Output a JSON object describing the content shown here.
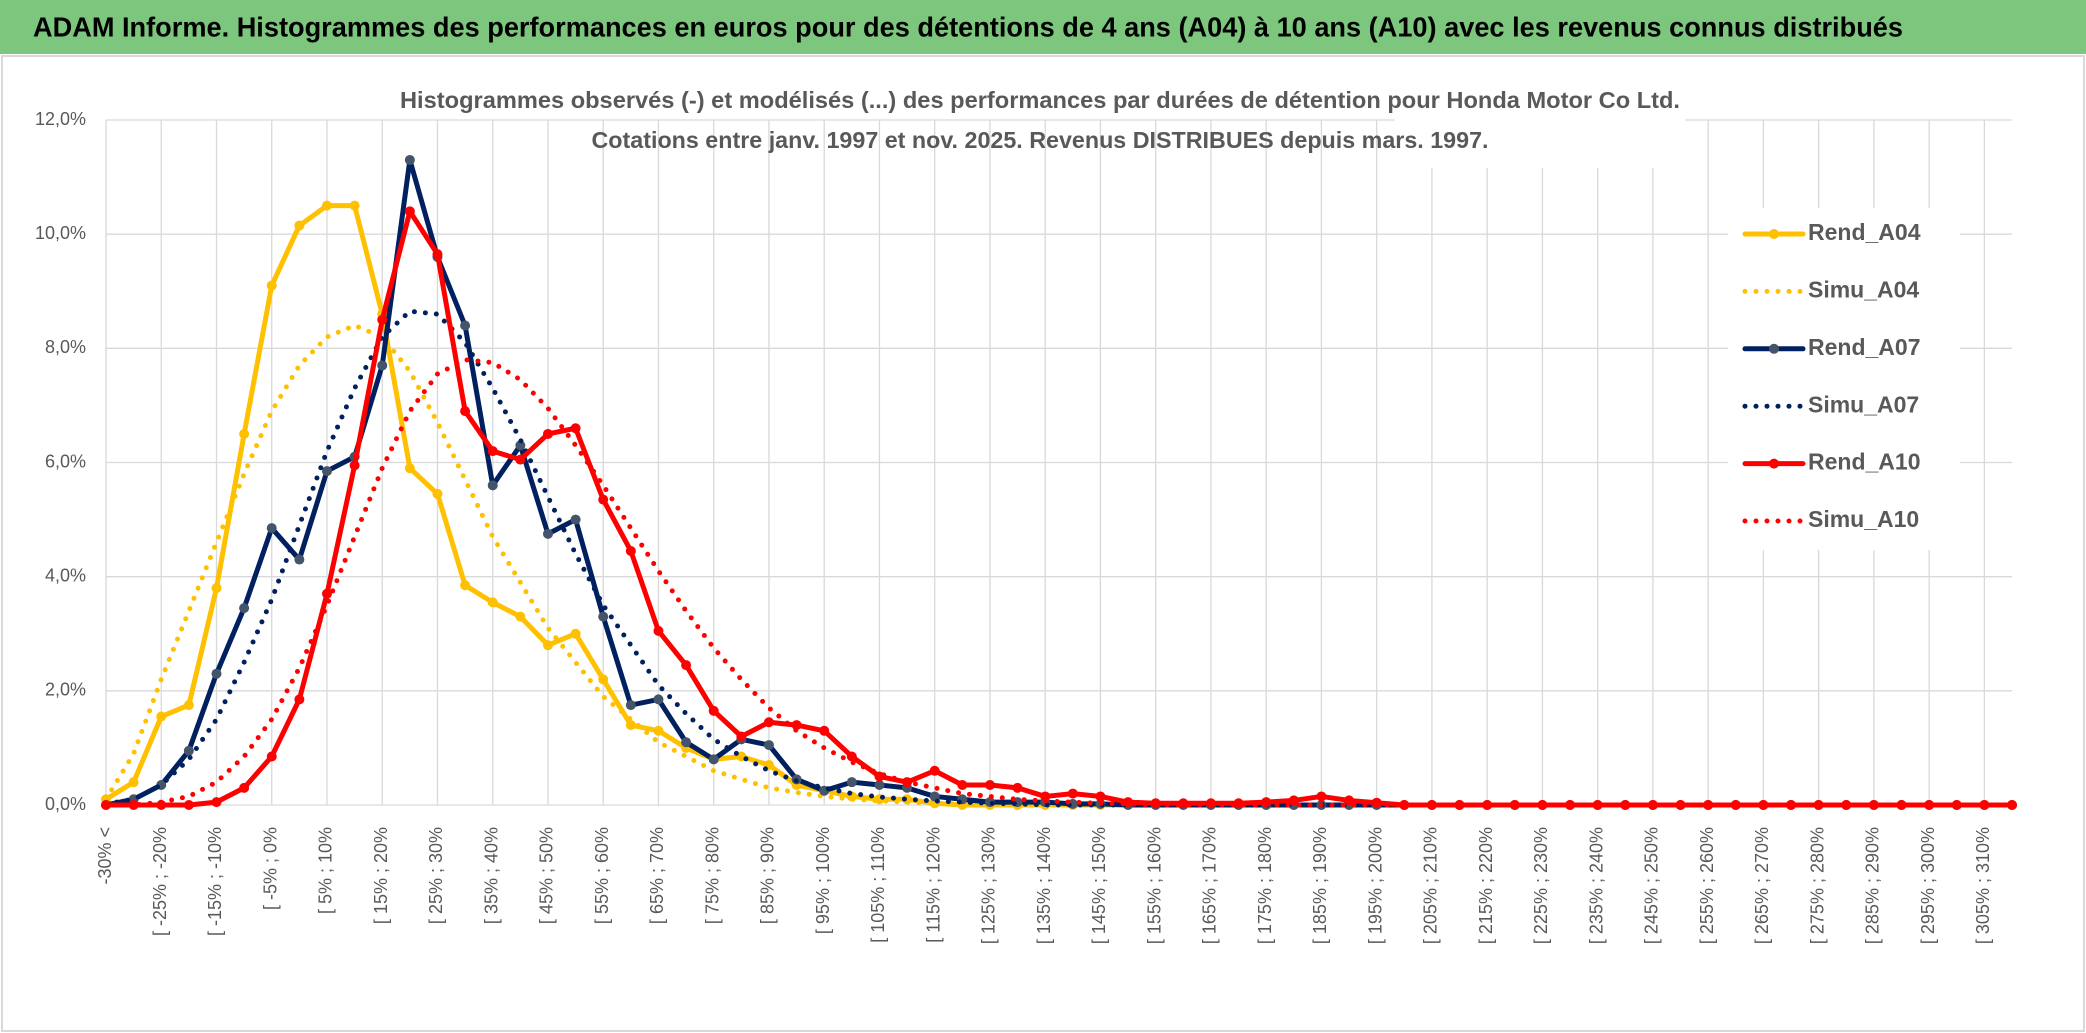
{
  "chart_data": {
    "type": "line",
    "header": "ADAM Informe. Histogrammes des performances en euros pour des détentions de 4 ans (A04) à 10 ans (A10) avec les revenus connus distribués",
    "title": [
      "Histogrammes observés (-) et modélisés (...) des performances par durées de détention pour Honda Motor Co Ltd.",
      "Cotations entre janv. 1997 et nov. 2025. Revenus DISTRIBUES depuis mars. 1997."
    ],
    "categories": [
      "-30% <",
      null,
      "[ -25% ; -20%",
      null,
      "[ -15% ; -10%",
      null,
      "[ -5% ; 0%",
      null,
      "[ 5% ; 10%",
      null,
      "[ 15% ; 20%",
      null,
      "[ 25% ; 30%",
      null,
      "[ 35% ; 40%",
      null,
      "[ 45% ; 50%",
      null,
      "[ 55% ; 60%",
      null,
      "[ 65% ; 70%",
      null,
      "[ 75% ; 80%",
      null,
      "[ 85% ; 90%",
      null,
      "[ 95% ; 100%",
      null,
      "[ 105% ; 110%",
      null,
      "[ 115% ; 120%",
      null,
      "[ 125% ; 130%",
      null,
      "[ 135% ; 140%",
      null,
      "[ 145% ; 150%",
      null,
      "[ 155% ; 160%",
      null,
      "[ 165% ; 170%",
      null,
      "[ 175% ; 180%",
      null,
      "[ 185% ; 190%",
      null,
      "[ 195% ; 200%",
      null,
      "[ 205% ; 210%",
      null,
      "[ 215% ; 220%",
      null,
      "[ 225% ; 230%",
      null,
      "[ 235% ; 240%",
      null,
      "[ 245% ; 250%",
      null,
      "[ 255% ; 260%",
      null,
      "[ 265% ; 270%",
      null,
      "[ 275% ; 280%",
      null,
      "[ 285% ; 290%",
      null,
      "[ 295% ; 300%",
      null,
      "[ 305% ; 310%",
      null
    ],
    "ylim": [
      0,
      12
    ],
    "yticks": [
      {
        "value": 0,
        "label": "0,0%"
      },
      {
        "value": 2,
        "label": "2,0%"
      },
      {
        "value": 4,
        "label": "4,0%"
      },
      {
        "value": 6,
        "label": "6,0%"
      },
      {
        "value": 8,
        "label": "8,0%"
      },
      {
        "value": 10,
        "label": "10,0%"
      },
      {
        "value": 12,
        "label": "12,0%"
      }
    ],
    "grid": true,
    "legend": "right",
    "series": [
      {
        "name": "Rend_A04",
        "color": "#ffc000",
        "style": "solid",
        "marker_color": "#ffc000",
        "values": [
          0.1,
          0.4,
          1.55,
          1.75,
          3.8,
          6.5,
          9.1,
          10.15,
          10.5,
          10.5,
          8.6,
          5.9,
          5.45,
          3.85,
          3.55,
          3.3,
          2.8,
          3.0,
          2.2,
          1.4,
          1.3,
          1.0,
          0.8,
          0.85,
          0.7,
          0.35,
          0.25,
          0.15,
          0.1,
          0.1,
          0.03,
          0,
          0,
          0,
          0,
          0,
          0,
          0,
          0,
          0,
          0,
          0,
          0,
          0,
          0,
          0,
          0,
          0,
          0,
          0,
          0,
          0,
          0,
          0,
          0,
          0,
          0,
          0,
          0,
          0,
          0,
          0,
          0,
          0,
          0,
          0,
          0,
          0,
          0,
          0
        ]
      },
      {
        "name": "Simu_A04",
        "color": "#ffc000",
        "style": "dotted",
        "values": [
          0.1,
          0.9,
          2.2,
          3.4,
          4.6,
          5.8,
          6.9,
          7.7,
          8.2,
          8.4,
          8.2,
          7.6,
          6.7,
          5.7,
          4.7,
          3.9,
          3.1,
          2.5,
          1.9,
          1.5,
          1.1,
          0.85,
          0.6,
          0.45,
          0.3,
          0.22,
          0.15,
          0.1,
          0.07,
          0.05,
          0.03,
          0.02,
          0,
          0,
          0,
          0,
          0,
          0,
          0,
          0,
          0,
          0,
          0,
          0,
          0,
          0,
          0,
          0,
          0,
          0,
          0,
          0,
          0,
          0,
          0,
          0,
          0,
          0,
          0,
          0,
          0,
          0,
          0,
          0,
          0,
          0,
          0,
          0,
          0,
          0
        ]
      },
      {
        "name": "Rend_A07",
        "color": "#002060",
        "style": "solid",
        "marker_color": "#44546a",
        "values": [
          0,
          0.1,
          0.35,
          0.95,
          2.3,
          3.45,
          4.85,
          4.3,
          5.85,
          6.1,
          7.7,
          11.3,
          9.6,
          8.4,
          5.6,
          6.3,
          4.75,
          5.0,
          3.3,
          1.75,
          1.85,
          1.1,
          0.8,
          1.15,
          1.05,
          0.45,
          0.25,
          0.4,
          0.35,
          0.3,
          0.15,
          0.1,
          0.05,
          0.05,
          0.05,
          0.02,
          0.02,
          0,
          0,
          0,
          0,
          0,
          0,
          0,
          0,
          0,
          0,
          0,
          0,
          0,
          0,
          0,
          0,
          0,
          0,
          0,
          0,
          0,
          0,
          0,
          0,
          0,
          0,
          0,
          0,
          0,
          0,
          0,
          0,
          0
        ]
      },
      {
        "name": "Simu_A07",
        "color": "#002060",
        "style": "dotted",
        "values": [
          0.02,
          0.1,
          0.35,
          0.8,
          1.5,
          2.5,
          3.6,
          4.9,
          6.2,
          7.3,
          8.2,
          8.65,
          8.6,
          8.1,
          7.3,
          6.4,
          5.4,
          4.4,
          3.5,
          2.8,
          2.1,
          1.6,
          1.15,
          0.85,
          0.6,
          0.42,
          0.3,
          0.2,
          0.14,
          0.1,
          0.07,
          0.05,
          0.03,
          0.02,
          0,
          0,
          0,
          0,
          0,
          0,
          0,
          0,
          0,
          0,
          0,
          0,
          0,
          0,
          0,
          0,
          0,
          0,
          0,
          0,
          0,
          0,
          0,
          0,
          0,
          0,
          0,
          0,
          0,
          0,
          0,
          0,
          0,
          0,
          0,
          0
        ]
      },
      {
        "name": "Rend_A10",
        "color": "#ff0000",
        "style": "solid",
        "marker_color": "#ff0000",
        "values": [
          0,
          0,
          0,
          0,
          0.05,
          0.3,
          0.85,
          1.85,
          3.7,
          5.95,
          8.5,
          10.4,
          9.65,
          6.9,
          6.2,
          6.05,
          6.5,
          6.6,
          5.35,
          4.45,
          3.05,
          2.45,
          1.65,
          1.2,
          1.45,
          1.4,
          1.3,
          0.85,
          0.5,
          0.4,
          0.6,
          0.35,
          0.35,
          0.3,
          0.15,
          0.2,
          0.15,
          0.05,
          0.03,
          0.03,
          0.03,
          0.03,
          0.05,
          0.08,
          0.15,
          0.08,
          0.04,
          0,
          0,
          0,
          0,
          0,
          0,
          0,
          0,
          0,
          0,
          0,
          0,
          0,
          0,
          0,
          0,
          0,
          0,
          0,
          0,
          0,
          0,
          0
        ]
      },
      {
        "name": "Simu_A10",
        "color": "#ff0000",
        "style": "dotted",
        "values": [
          0,
          0,
          0.05,
          0.15,
          0.4,
          0.85,
          1.5,
          2.4,
          3.5,
          4.7,
          5.9,
          6.9,
          7.55,
          7.8,
          7.75,
          7.45,
          6.95,
          6.3,
          5.6,
          4.85,
          4.1,
          3.4,
          2.75,
          2.2,
          1.7,
          1.3,
          1.0,
          0.75,
          0.55,
          0.4,
          0.3,
          0.2,
          0.15,
          0.1,
          0.07,
          0.05,
          0.03,
          0.02,
          0,
          0,
          0,
          0,
          0,
          0,
          0,
          0,
          0,
          0,
          0,
          0,
          0,
          0,
          0,
          0,
          0,
          0,
          0,
          0,
          0,
          0,
          0,
          0,
          0,
          0,
          0,
          0,
          0,
          0,
          0,
          0
        ]
      }
    ]
  }
}
